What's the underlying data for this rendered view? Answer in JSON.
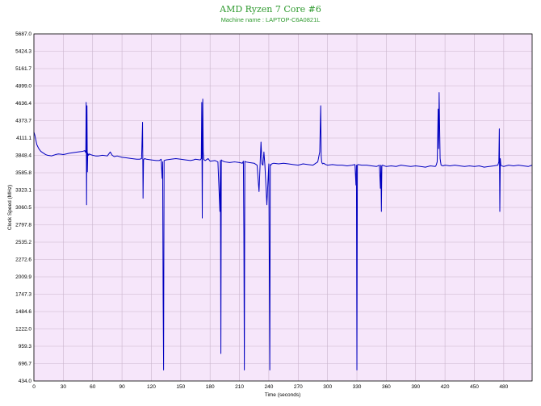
{
  "chart_data": {
    "type": "line",
    "title": "AMD Ryzen 7 Core #6",
    "subtitle": "Machine name : LAPTOP-C6A0821L",
    "xlabel": "Time (seconds)",
    "ylabel": "Clock Speed (MHz)",
    "xlim": [
      0,
      509
    ],
    "ylim": [
      434.0,
      5687.0
    ],
    "x_ticks": [
      0,
      30,
      60,
      90,
      120,
      150,
      180,
      210,
      240,
      270,
      300,
      330,
      360,
      390,
      420,
      450,
      480
    ],
    "y_ticks": [
      "434.0",
      "696.7",
      "959.3",
      "1222.0",
      "1484.6",
      "1747.3",
      "2009.9",
      "2272.6",
      "2535.2",
      "2797.8",
      "3060.5",
      "3323.1",
      "3585.8",
      "3848.4",
      "4111.1",
      "4373.7",
      "4636.4",
      "4899.0",
      "5161.7",
      "5424.3",
      "5687.0"
    ],
    "grid": true,
    "plot_background": "#f6e6fa",
    "grid_color": "#c9b4cc",
    "series": [
      {
        "color": "#0000c0",
        "x": [
          0,
          1,
          2,
          3,
          4,
          5,
          6,
          7,
          8,
          10,
          12,
          14,
          16,
          18,
          20,
          22,
          25,
          28,
          30,
          33,
          36,
          40,
          45,
          50,
          52,
          53,
          53.4,
          53.8,
          54.2,
          54.6,
          55,
          55.4,
          55.8,
          56.5,
          58,
          60,
          63,
          66,
          70,
          75,
          78,
          80,
          82,
          85,
          90,
          95,
          100,
          105,
          108,
          110,
          111,
          111.5,
          112,
          112.5,
          113,
          115,
          120,
          125,
          128,
          130,
          131,
          131.5,
          132,
          132.5,
          133,
          135,
          140,
          145,
          150,
          155,
          160,
          163,
          165,
          170,
          171,
          171.5,
          172,
          172.5,
          173,
          173.5,
          174,
          175,
          178,
          180,
          185,
          188,
          190,
          190.5,
          191,
          191.5,
          192,
          195,
          200,
          205,
          210,
          213,
          214,
          214.5,
          215,
          215.5,
          216,
          220,
          225,
          228,
          230,
          232,
          233,
          234,
          235,
          236,
          238,
          240,
          241,
          241.5,
          242,
          242.5,
          243,
          245,
          250,
          255,
          260,
          265,
          270,
          275,
          280,
          285,
          290,
          292,
          293,
          293.5,
          294,
          294.5,
          295,
          296,
          298,
          300,
          305,
          310,
          315,
          320,
          325,
          328,
          329,
          329.5,
          330,
          330.5,
          331,
          335,
          340,
          345,
          350,
          353,
          354,
          354.5,
          355,
          355.5,
          356,
          360,
          365,
          370,
          375,
          380,
          385,
          390,
          395,
          400,
          405,
          410,
          411,
          412,
          412.5,
          413,
          413.5,
          414,
          415,
          416,
          418,
          420,
          425,
          430,
          435,
          440,
          445,
          450,
          455,
          460,
          465,
          470,
          474,
          475,
          475.5,
          476,
          476.5,
          477,
          478,
          480,
          485,
          490,
          495,
          500,
          505,
          509
        ],
        "y": [
          4200,
          4150,
          4080,
          4010,
          3980,
          3950,
          3930,
          3910,
          3900,
          3880,
          3860,
          3850,
          3845,
          3840,
          3850,
          3860,
          3870,
          3865,
          3860,
          3870,
          3880,
          3890,
          3900,
          3910,
          3920,
          3890,
          4650,
          3100,
          4600,
          3600,
          3880,
          3860,
          3850,
          3870,
          3860,
          3850,
          3840,
          3840,
          3850,
          3840,
          3900,
          3850,
          3830,
          3840,
          3820,
          3810,
          3800,
          3790,
          3790,
          3800,
          4350,
          3200,
          3780,
          3790,
          3800,
          3790,
          3780,
          3770,
          3770,
          3790,
          3500,
          3750,
          1700,
          600,
          3770,
          3780,
          3790,
          3800,
          3790,
          3780,
          3770,
          3780,
          3790,
          3780,
          3800,
          4650,
          2900,
          4700,
          3900,
          3790,
          3780,
          3770,
          3800,
          3760,
          3770,
          3750,
          3000,
          3770,
          850,
          3780,
          3770,
          3750,
          3740,
          3750,
          3740,
          3730,
          3760,
          2700,
          600,
          3760,
          3750,
          3740,
          3730,
          3700,
          3300,
          4050,
          3720,
          3700,
          3900,
          3700,
          3100,
          3720,
          600,
          3710,
          3700,
          3710,
          3720,
          3730,
          3720,
          3730,
          3720,
          3710,
          3700,
          3720,
          3710,
          3700,
          3750,
          3900,
          4600,
          3850,
          3750,
          3730,
          3720,
          3730,
          3710,
          3700,
          3710,
          3700,
          3700,
          3690,
          3700,
          3710,
          3400,
          3700,
          600,
          3700,
          3710,
          3700,
          3700,
          3690,
          3680,
          3700,
          3350,
          3700,
          3000,
          3690,
          3700,
          3680,
          3690,
          3680,
          3700,
          3690,
          3680,
          3690,
          3680,
          3670,
          3690,
          3680,
          3700,
          3750,
          4100,
          4550,
          3950,
          4800,
          3800,
          3700,
          3690,
          3700,
          3690,
          3700,
          3690,
          3680,
          3690,
          3680,
          3690,
          3670,
          3680,
          3690,
          3700,
          3750,
          4250,
          3000,
          3800,
          3700,
          3690,
          3680,
          3700,
          3690,
          3700,
          3690,
          3680,
          3700
        ]
      }
    ]
  }
}
